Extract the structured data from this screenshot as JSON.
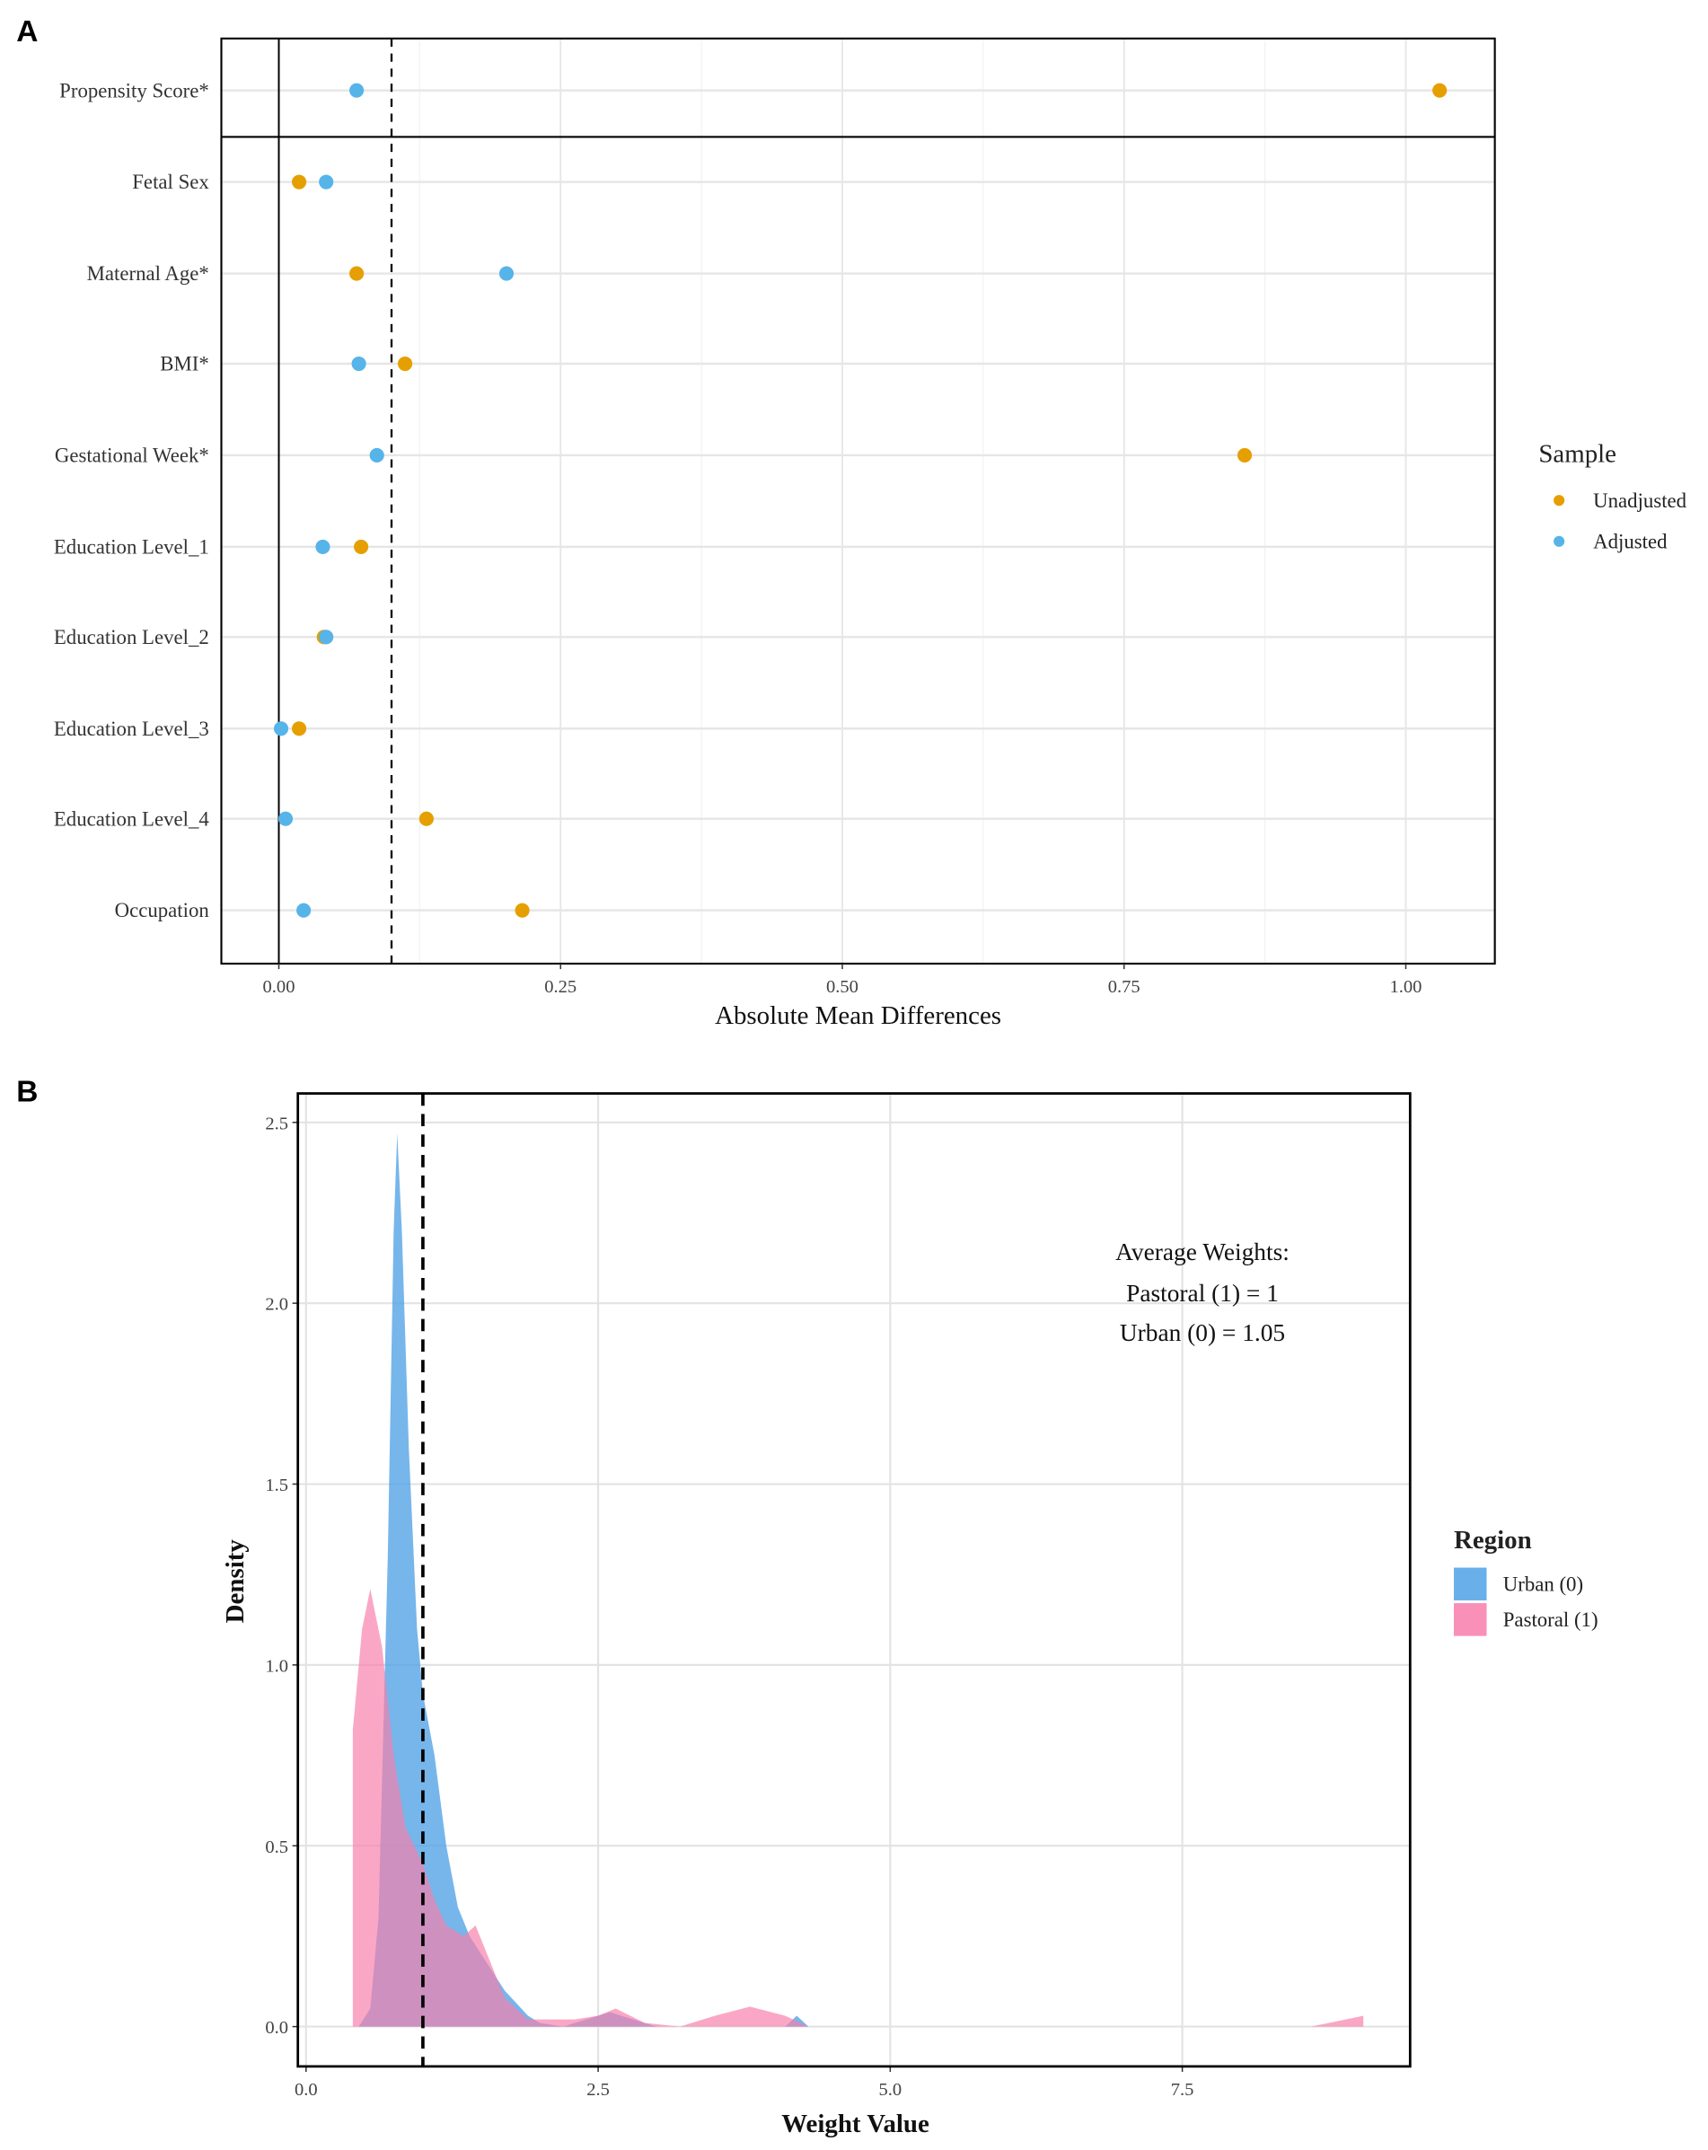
{
  "chart_data": [
    {
      "panel": "A",
      "type": "scatter",
      "title": "",
      "xlabel": "Absolute Mean Differences",
      "ylabel": "",
      "xlim": [
        -0.051,
        1.079
      ],
      "xticks": [
        0,
        0.25,
        0.5,
        0.75,
        1.0
      ],
      "xtick_labels": [
        "0.00",
        "0.25",
        "0.50",
        "0.75",
        "1.00"
      ],
      "grid": true,
      "threshold_line": 0.1,
      "categories": [
        "Propensity Score*",
        "Fetal Sex",
        "Maternal Age*",
        "BMI*",
        "Gestational Week*",
        "Education Level_1",
        "Education Level_2",
        "Education Level_3",
        "Education Level_4",
        "Occupation"
      ],
      "legend": {
        "title": "Sample",
        "position": "right"
      },
      "series": [
        {
          "name": "Unadjusted",
          "color": "#E69F00",
          "values": [
            1.03,
            0.018,
            0.069,
            0.112,
            0.857,
            0.073,
            0.04,
            0.018,
            0.131,
            0.216
          ]
        },
        {
          "name": "Adjusted",
          "color": "#56B4E9",
          "values": [
            0.069,
            0.042,
            0.202,
            0.071,
            0.087,
            0.039,
            0.042,
            0.002,
            0.006,
            0.022
          ]
        }
      ]
    },
    {
      "panel": "B",
      "type": "area",
      "title": "",
      "xlabel": "Weight Value",
      "ylabel": "Density",
      "xlim": [
        -0.07,
        9.45
      ],
      "ylim": [
        -0.11,
        2.58
      ],
      "xticks": [
        0,
        2.5,
        5,
        7.5
      ],
      "xtick_labels": [
        "0.0",
        "2.5",
        "5.0",
        "7.5"
      ],
      "yticks": [
        0,
        0.5,
        1,
        1.5,
        2,
        2.5
      ],
      "ytick_labels": [
        "0.0",
        "0.5",
        "1.0",
        "1.5",
        "2.0",
        "2.5"
      ],
      "grid": true,
      "reference_line": 1.0,
      "legend": {
        "title": "Region",
        "position": "right"
      },
      "annotation": [
        "Average Weights:",
        "Pastoral (1) = 1",
        "Urban (0) = 1.05"
      ],
      "series": [
        {
          "name": "Urban (0)",
          "color": "#4FA2E6",
          "x": [
            0.45,
            0.55,
            0.62,
            0.7,
            0.75,
            0.78,
            0.82,
            0.88,
            0.95,
            1.0,
            1.1,
            1.2,
            1.3,
            1.4,
            1.5,
            1.7,
            1.9,
            2.0,
            2.2,
            2.5,
            2.6,
            2.8,
            3.0,
            3.5,
            4.1,
            4.2,
            4.3,
            4.5
          ],
          "y": [
            0,
            0.05,
            0.3,
            1.3,
            2.2,
            2.47,
            2.2,
            1.6,
            1.1,
            0.92,
            0.75,
            0.5,
            0.33,
            0.25,
            0.2,
            0.1,
            0.03,
            0.01,
            0.0,
            0.03,
            0.04,
            0.02,
            0.0,
            0.0,
            0.0,
            0.03,
            0.0,
            0.0
          ]
        },
        {
          "name": "Pastoral (1)",
          "color": "#F77DAA",
          "x": [
            0.4,
            0.4,
            0.48,
            0.55,
            0.65,
            0.75,
            0.85,
            1.0,
            1.1,
            1.2,
            1.35,
            1.45,
            1.55,
            1.7,
            1.9,
            2.1,
            2.3,
            2.5,
            2.65,
            2.9,
            3.2,
            3.5,
            3.8,
            4.1,
            4.3,
            8.6,
            8.9,
            9.05,
            9.05
          ],
          "y": [
            0,
            0.82,
            1.1,
            1.21,
            1.05,
            0.75,
            0.55,
            0.45,
            0.35,
            0.28,
            0.25,
            0.28,
            0.2,
            0.08,
            0.02,
            0.02,
            0.02,
            0.03,
            0.05,
            0.01,
            0.0,
            0.03,
            0.055,
            0.03,
            0.0,
            0.0,
            0.02,
            0.03,
            0
          ]
        }
      ]
    }
  ]
}
